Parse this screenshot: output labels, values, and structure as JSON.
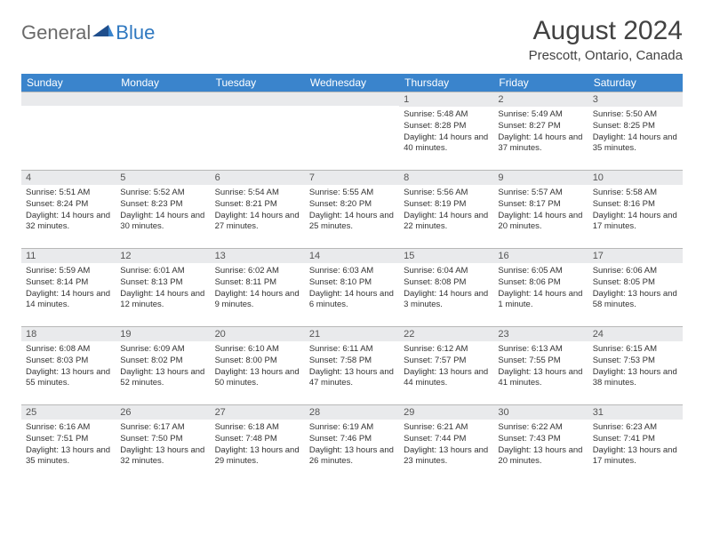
{
  "logo": {
    "general": "General",
    "blue": "Blue"
  },
  "title": "August 2024",
  "location": "Prescott, Ontario, Canada",
  "colors": {
    "header_bg": "#3a84cc",
    "header_text": "#ffffff",
    "daynum_bg": "#e9eaec",
    "daynum_border": "#b8b8b8",
    "body_text": "#333333",
    "logo_gray": "#6a6a6a",
    "logo_blue": "#2f78c0"
  },
  "weekdays": [
    "Sunday",
    "Monday",
    "Tuesday",
    "Wednesday",
    "Thursday",
    "Friday",
    "Saturday"
  ],
  "weeks": [
    [
      {
        "day": "",
        "sunrise": "",
        "sunset": "",
        "daylight": ""
      },
      {
        "day": "",
        "sunrise": "",
        "sunset": "",
        "daylight": ""
      },
      {
        "day": "",
        "sunrise": "",
        "sunset": "",
        "daylight": ""
      },
      {
        "day": "",
        "sunrise": "",
        "sunset": "",
        "daylight": ""
      },
      {
        "day": "1",
        "sunrise": "Sunrise: 5:48 AM",
        "sunset": "Sunset: 8:28 PM",
        "daylight": "Daylight: 14 hours and 40 minutes."
      },
      {
        "day": "2",
        "sunrise": "Sunrise: 5:49 AM",
        "sunset": "Sunset: 8:27 PM",
        "daylight": "Daylight: 14 hours and 37 minutes."
      },
      {
        "day": "3",
        "sunrise": "Sunrise: 5:50 AM",
        "sunset": "Sunset: 8:25 PM",
        "daylight": "Daylight: 14 hours and 35 minutes."
      }
    ],
    [
      {
        "day": "4",
        "sunrise": "Sunrise: 5:51 AM",
        "sunset": "Sunset: 8:24 PM",
        "daylight": "Daylight: 14 hours and 32 minutes."
      },
      {
        "day": "5",
        "sunrise": "Sunrise: 5:52 AM",
        "sunset": "Sunset: 8:23 PM",
        "daylight": "Daylight: 14 hours and 30 minutes."
      },
      {
        "day": "6",
        "sunrise": "Sunrise: 5:54 AM",
        "sunset": "Sunset: 8:21 PM",
        "daylight": "Daylight: 14 hours and 27 minutes."
      },
      {
        "day": "7",
        "sunrise": "Sunrise: 5:55 AM",
        "sunset": "Sunset: 8:20 PM",
        "daylight": "Daylight: 14 hours and 25 minutes."
      },
      {
        "day": "8",
        "sunrise": "Sunrise: 5:56 AM",
        "sunset": "Sunset: 8:19 PM",
        "daylight": "Daylight: 14 hours and 22 minutes."
      },
      {
        "day": "9",
        "sunrise": "Sunrise: 5:57 AM",
        "sunset": "Sunset: 8:17 PM",
        "daylight": "Daylight: 14 hours and 20 minutes."
      },
      {
        "day": "10",
        "sunrise": "Sunrise: 5:58 AM",
        "sunset": "Sunset: 8:16 PM",
        "daylight": "Daylight: 14 hours and 17 minutes."
      }
    ],
    [
      {
        "day": "11",
        "sunrise": "Sunrise: 5:59 AM",
        "sunset": "Sunset: 8:14 PM",
        "daylight": "Daylight: 14 hours and 14 minutes."
      },
      {
        "day": "12",
        "sunrise": "Sunrise: 6:01 AM",
        "sunset": "Sunset: 8:13 PM",
        "daylight": "Daylight: 14 hours and 12 minutes."
      },
      {
        "day": "13",
        "sunrise": "Sunrise: 6:02 AM",
        "sunset": "Sunset: 8:11 PM",
        "daylight": "Daylight: 14 hours and 9 minutes."
      },
      {
        "day": "14",
        "sunrise": "Sunrise: 6:03 AM",
        "sunset": "Sunset: 8:10 PM",
        "daylight": "Daylight: 14 hours and 6 minutes."
      },
      {
        "day": "15",
        "sunrise": "Sunrise: 6:04 AM",
        "sunset": "Sunset: 8:08 PM",
        "daylight": "Daylight: 14 hours and 3 minutes."
      },
      {
        "day": "16",
        "sunrise": "Sunrise: 6:05 AM",
        "sunset": "Sunset: 8:06 PM",
        "daylight": "Daylight: 14 hours and 1 minute."
      },
      {
        "day": "17",
        "sunrise": "Sunrise: 6:06 AM",
        "sunset": "Sunset: 8:05 PM",
        "daylight": "Daylight: 13 hours and 58 minutes."
      }
    ],
    [
      {
        "day": "18",
        "sunrise": "Sunrise: 6:08 AM",
        "sunset": "Sunset: 8:03 PM",
        "daylight": "Daylight: 13 hours and 55 minutes."
      },
      {
        "day": "19",
        "sunrise": "Sunrise: 6:09 AM",
        "sunset": "Sunset: 8:02 PM",
        "daylight": "Daylight: 13 hours and 52 minutes."
      },
      {
        "day": "20",
        "sunrise": "Sunrise: 6:10 AM",
        "sunset": "Sunset: 8:00 PM",
        "daylight": "Daylight: 13 hours and 50 minutes."
      },
      {
        "day": "21",
        "sunrise": "Sunrise: 6:11 AM",
        "sunset": "Sunset: 7:58 PM",
        "daylight": "Daylight: 13 hours and 47 minutes."
      },
      {
        "day": "22",
        "sunrise": "Sunrise: 6:12 AM",
        "sunset": "Sunset: 7:57 PM",
        "daylight": "Daylight: 13 hours and 44 minutes."
      },
      {
        "day": "23",
        "sunrise": "Sunrise: 6:13 AM",
        "sunset": "Sunset: 7:55 PM",
        "daylight": "Daylight: 13 hours and 41 minutes."
      },
      {
        "day": "24",
        "sunrise": "Sunrise: 6:15 AM",
        "sunset": "Sunset: 7:53 PM",
        "daylight": "Daylight: 13 hours and 38 minutes."
      }
    ],
    [
      {
        "day": "25",
        "sunrise": "Sunrise: 6:16 AM",
        "sunset": "Sunset: 7:51 PM",
        "daylight": "Daylight: 13 hours and 35 minutes."
      },
      {
        "day": "26",
        "sunrise": "Sunrise: 6:17 AM",
        "sunset": "Sunset: 7:50 PM",
        "daylight": "Daylight: 13 hours and 32 minutes."
      },
      {
        "day": "27",
        "sunrise": "Sunrise: 6:18 AM",
        "sunset": "Sunset: 7:48 PM",
        "daylight": "Daylight: 13 hours and 29 minutes."
      },
      {
        "day": "28",
        "sunrise": "Sunrise: 6:19 AM",
        "sunset": "Sunset: 7:46 PM",
        "daylight": "Daylight: 13 hours and 26 minutes."
      },
      {
        "day": "29",
        "sunrise": "Sunrise: 6:21 AM",
        "sunset": "Sunset: 7:44 PM",
        "daylight": "Daylight: 13 hours and 23 minutes."
      },
      {
        "day": "30",
        "sunrise": "Sunrise: 6:22 AM",
        "sunset": "Sunset: 7:43 PM",
        "daylight": "Daylight: 13 hours and 20 minutes."
      },
      {
        "day": "31",
        "sunrise": "Sunrise: 6:23 AM",
        "sunset": "Sunset: 7:41 PM",
        "daylight": "Daylight: 13 hours and 17 minutes."
      }
    ]
  ]
}
